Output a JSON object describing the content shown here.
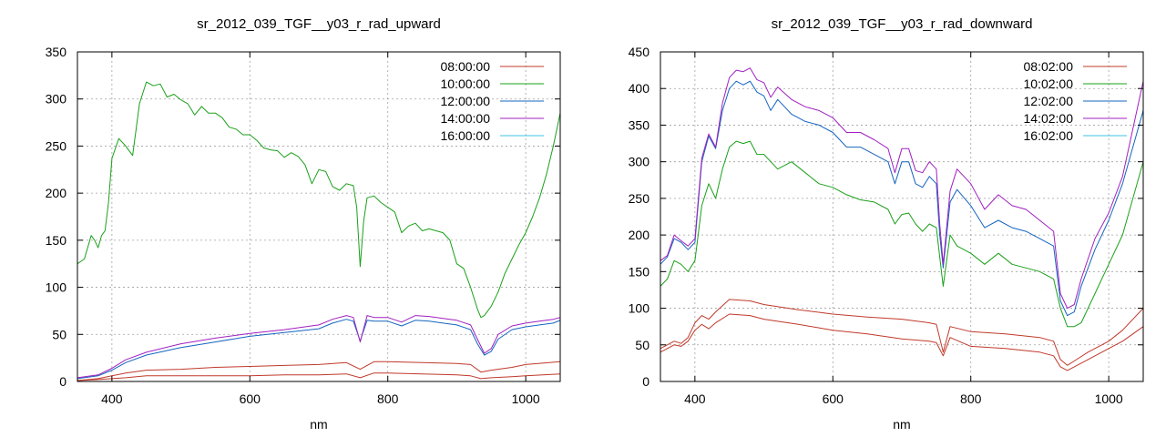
{
  "chart_data": [
    {
      "type": "line",
      "title": "sr_2012_039_TGF__y03_r_rad_upward",
      "xlabel": "nm",
      "ylabel": "",
      "xlim": [
        350,
        1050
      ],
      "ylim": [
        0,
        350
      ],
      "xticks": [
        400,
        600,
        800,
        1000
      ],
      "yticks": [
        0,
        50,
        100,
        150,
        200,
        250,
        300,
        350
      ],
      "grid": true,
      "legend": "top-right",
      "series": [
        {
          "name": "08:00:00",
          "color": "#c0392b",
          "x": [
            350,
            380,
            400,
            420,
            450,
            500,
            550,
            600,
            650,
            700,
            740,
            760,
            780,
            800,
            850,
            900,
            920,
            935,
            950,
            980,
            1000,
            1050
          ],
          "y": [
            1,
            2,
            3,
            4,
            6,
            6,
            6,
            6,
            7,
            7,
            8,
            4,
            9,
            9,
            8,
            7,
            6,
            3,
            4,
            5,
            6,
            8
          ]
        },
        {
          "name": "10:00:00",
          "color": "#1aa01a",
          "x": [
            350,
            360,
            370,
            375,
            380,
            385,
            390,
            395,
            400,
            410,
            420,
            430,
            440,
            450,
            460,
            470,
            480,
            490,
            500,
            510,
            520,
            530,
            540,
            550,
            560,
            570,
            580,
            590,
            600,
            610,
            620,
            630,
            640,
            650,
            660,
            670,
            680,
            690,
            700,
            710,
            720,
            730,
            740,
            750,
            755,
            760,
            765,
            770,
            780,
            790,
            800,
            810,
            820,
            830,
            840,
            850,
            860,
            870,
            880,
            890,
            900,
            910,
            920,
            930,
            935,
            940,
            950,
            960,
            970,
            980,
            990,
            1000,
            1010,
            1020,
            1030,
            1040,
            1050
          ],
          "y": [
            125,
            130,
            155,
            150,
            142,
            155,
            160,
            190,
            237,
            258,
            250,
            240,
            295,
            318,
            314,
            316,
            302,
            305,
            299,
            295,
            283,
            292,
            285,
            285,
            280,
            270,
            268,
            262,
            262,
            256,
            248,
            246,
            245,
            238,
            243,
            239,
            230,
            210,
            225,
            223,
            207,
            203,
            210,
            208,
            185,
            122,
            170,
            195,
            197,
            190,
            185,
            180,
            158,
            165,
            168,
            160,
            162,
            160,
            158,
            150,
            125,
            120,
            100,
            77,
            68,
            70,
            80,
            95,
            115,
            130,
            145,
            158,
            175,
            195,
            220,
            250,
            285
          ]
        },
        {
          "name": "12:00:00",
          "color": "#1565c0",
          "x": [
            350,
            380,
            400,
            420,
            450,
            500,
            550,
            600,
            650,
            700,
            720,
            740,
            750,
            760,
            770,
            780,
            800,
            820,
            840,
            860,
            880,
            900,
            920,
            930,
            940,
            950,
            960,
            980,
            1000,
            1020,
            1040,
            1050
          ],
          "y": [
            3,
            6,
            12,
            20,
            28,
            36,
            42,
            48,
            52,
            56,
            62,
            66,
            64,
            43,
            65,
            64,
            64,
            59,
            65,
            64,
            62,
            60,
            55,
            40,
            28,
            32,
            45,
            55,
            58,
            60,
            62,
            65
          ]
        },
        {
          "name": "14:00:00",
          "color": "#a020c0",
          "x": [
            350,
            380,
            400,
            420,
            450,
            500,
            550,
            600,
            650,
            700,
            720,
            740,
            750,
            760,
            770,
            780,
            800,
            820,
            840,
            860,
            880,
            900,
            920,
            930,
            940,
            950,
            960,
            980,
            1000,
            1020,
            1040,
            1050
          ],
          "y": [
            4,
            7,
            14,
            23,
            31,
            40,
            46,
            51,
            55,
            60,
            66,
            70,
            68,
            42,
            70,
            68,
            68,
            63,
            70,
            69,
            67,
            65,
            60,
            45,
            30,
            35,
            50,
            59,
            62,
            64,
            66,
            68
          ]
        },
        {
          "name": "16:00:00",
          "color": "#40c0e8",
          "x": [],
          "y": []
        }
      ],
      "extra_series": [
        {
          "color": "#c0392b",
          "x": [
            350,
            380,
            400,
            420,
            450,
            500,
            550,
            600,
            650,
            700,
            740,
            760,
            780,
            800,
            850,
            900,
            920,
            935,
            950,
            980,
            1000,
            1050
          ],
          "y": [
            1,
            3,
            6,
            9,
            12,
            13,
            15,
            16,
            17,
            18,
            20,
            13,
            21,
            21,
            20,
            19,
            18,
            10,
            12,
            15,
            18,
            21
          ]
        }
      ]
    },
    {
      "type": "line",
      "title": "sr_2012_039_TGF__y03_r_rad_downward",
      "xlabel": "nm",
      "ylabel": "",
      "xlim": [
        350,
        1050
      ],
      "ylim": [
        0,
        450
      ],
      "xticks": [
        400,
        600,
        800,
        1000
      ],
      "yticks": [
        0,
        50,
        100,
        150,
        200,
        250,
        300,
        350,
        400,
        450
      ],
      "grid": true,
      "legend": "top-right",
      "series": [
        {
          "name": "08:02:00",
          "color": "#c0392b",
          "x": [
            350,
            370,
            380,
            390,
            400,
            410,
            420,
            430,
            450,
            480,
            500,
            550,
            600,
            650,
            700,
            740,
            750,
            760,
            770,
            800,
            850,
            900,
            920,
            930,
            940,
            950,
            970,
            1000,
            1020,
            1050
          ],
          "y": [
            40,
            50,
            48,
            55,
            70,
            78,
            72,
            80,
            92,
            90,
            85,
            78,
            70,
            65,
            58,
            55,
            53,
            35,
            60,
            48,
            45,
            40,
            35,
            20,
            15,
            20,
            30,
            45,
            55,
            75
          ]
        },
        {
          "name": "10:02:00",
          "color": "#1aa01a",
          "x": [
            350,
            360,
            370,
            380,
            390,
            400,
            410,
            420,
            430,
            440,
            450,
            460,
            470,
            480,
            490,
            500,
            520,
            540,
            560,
            580,
            600,
            620,
            640,
            660,
            680,
            690,
            700,
            710,
            720,
            730,
            740,
            750,
            755,
            760,
            765,
            770,
            780,
            800,
            820,
            840,
            860,
            880,
            900,
            920,
            930,
            940,
            950,
            960,
            980,
            1000,
            1020,
            1050
          ],
          "y": [
            130,
            140,
            165,
            160,
            150,
            165,
            240,
            270,
            250,
            290,
            320,
            328,
            325,
            328,
            310,
            310,
            290,
            300,
            285,
            270,
            265,
            255,
            248,
            245,
            235,
            215,
            228,
            230,
            215,
            205,
            215,
            210,
            170,
            130,
            165,
            200,
            185,
            175,
            160,
            175,
            160,
            155,
            150,
            140,
            100,
            75,
            75,
            80,
            120,
            160,
            200,
            300
          ]
        },
        {
          "name": "12:02:00",
          "color": "#1565c0",
          "x": [
            350,
            360,
            370,
            380,
            390,
            400,
            410,
            420,
            430,
            440,
            450,
            460,
            470,
            480,
            490,
            500,
            510,
            520,
            540,
            560,
            580,
            600,
            620,
            640,
            660,
            680,
            690,
            700,
            710,
            720,
            730,
            740,
            750,
            755,
            760,
            765,
            770,
            780,
            800,
            820,
            840,
            860,
            880,
            900,
            920,
            930,
            940,
            950,
            960,
            980,
            1000,
            1020,
            1050
          ],
          "y": [
            160,
            170,
            195,
            190,
            180,
            190,
            300,
            335,
            318,
            370,
            400,
            410,
            405,
            410,
            395,
            390,
            370,
            385,
            365,
            355,
            350,
            340,
            320,
            320,
            310,
            300,
            270,
            300,
            300,
            270,
            265,
            280,
            270,
            200,
            155,
            200,
            245,
            262,
            240,
            210,
            220,
            210,
            205,
            195,
            185,
            110,
            90,
            95,
            130,
            180,
            220,
            270,
            370
          ]
        },
        {
          "name": "14:02:00",
          "color": "#a020c0",
          "x": [
            350,
            360,
            370,
            380,
            390,
            400,
            410,
            420,
            430,
            440,
            450,
            460,
            470,
            480,
            490,
            500,
            510,
            520,
            540,
            560,
            580,
            600,
            620,
            640,
            660,
            680,
            690,
            700,
            710,
            720,
            730,
            740,
            750,
            755,
            760,
            765,
            770,
            780,
            800,
            820,
            840,
            860,
            880,
            900,
            920,
            930,
            940,
            950,
            960,
            980,
            1000,
            1020,
            1050
          ],
          "y": [
            165,
            172,
            200,
            192,
            185,
            195,
            305,
            338,
            320,
            380,
            415,
            425,
            423,
            428,
            412,
            408,
            388,
            402,
            385,
            375,
            370,
            360,
            340,
            340,
            330,
            318,
            285,
            318,
            318,
            288,
            285,
            300,
            290,
            215,
            160,
            210,
            260,
            290,
            270,
            235,
            255,
            240,
            235,
            220,
            205,
            120,
            100,
            105,
            140,
            195,
            230,
            280,
            410
          ]
        },
        {
          "name": "16:02:00",
          "color": "#40c0e8",
          "x": [],
          "y": []
        }
      ],
      "extra_series": [
        {
          "color": "#c0392b",
          "x": [
            350,
            370,
            380,
            390,
            400,
            410,
            420,
            430,
            450,
            480,
            500,
            550,
            600,
            650,
            700,
            740,
            750,
            760,
            770,
            800,
            850,
            900,
            920,
            930,
            940,
            950,
            970,
            1000,
            1020,
            1050
          ],
          "y": [
            45,
            55,
            52,
            60,
            80,
            90,
            85,
            95,
            112,
            110,
            105,
            98,
            92,
            88,
            85,
            80,
            78,
            40,
            75,
            68,
            65,
            60,
            55,
            30,
            22,
            28,
            40,
            55,
            70,
            100
          ]
        }
      ]
    }
  ]
}
